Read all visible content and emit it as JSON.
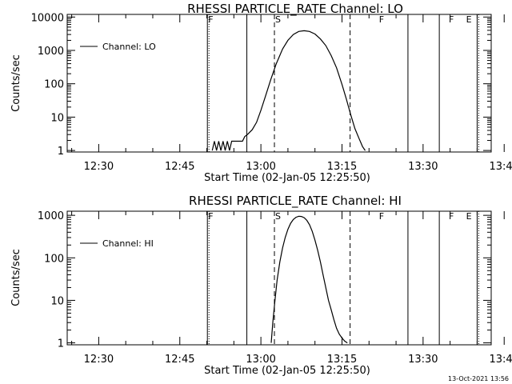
{
  "chart_data": [
    {
      "type": "line",
      "title": "RHESSI PARTICLE_RATE Channel: LO",
      "xlabel": "Start Time (02-Jan-05 12:25:50)",
      "ylabel": "Counts/sec",
      "y_scale": "log",
      "ylim": [
        0.9,
        12000
      ],
      "y_ticks": [
        1,
        10,
        100,
        1000,
        10000
      ],
      "y_tick_labels": [
        "1",
        "10",
        "100",
        "1000",
        "10000"
      ],
      "x_minutes_range": [
        -5.83,
        72.6
      ],
      "x_ticks": [
        0,
        15,
        30,
        45,
        60,
        75,
        90
      ],
      "x_tick_labels": [
        "12:30",
        "12:45",
        "13:00",
        "13:15",
        "13:30",
        "13:45",
        "14:00"
      ],
      "legend": {
        "entry": "Channel: LO",
        "placement": "top-left"
      },
      "series": [
        {
          "name": "Channel: LO",
          "x": [
            21.0,
            21.4,
            21.8,
            22.2,
            22.6,
            23.0,
            23.4,
            23.8,
            24.2,
            24.6,
            25.0,
            25.4,
            25.8,
            26.2,
            26.6,
            27.0,
            27.6,
            28.4,
            29.2,
            30.0,
            30.8,
            31.8,
            32.8,
            34.0,
            35.0,
            36.0,
            37.0,
            38.0,
            39.0,
            40.0,
            41.0,
            42.0,
            43.0,
            44.0,
            45.0,
            45.8,
            46.6,
            47.4,
            48.2,
            48.8,
            49.3
          ],
          "y": [
            1.0,
            1.9,
            1.0,
            1.9,
            1.0,
            1.9,
            1.0,
            1.9,
            1.0,
            1.9,
            1.9,
            1.9,
            1.9,
            1.9,
            1.9,
            2.6,
            3.1,
            4.2,
            7.0,
            16,
            40,
            130,
            380,
            1100,
            2000,
            3000,
            3700,
            3900,
            3700,
            3100,
            2200,
            1400,
            700,
            300,
            95,
            35,
            12,
            4.5,
            2.2,
            1.3,
            1.0
          ]
        }
      ],
      "markers": {
        "solid_vertical_lines_x": [
          20.1,
          27.4,
          57.2,
          63.0,
          70.0
        ],
        "dashed_vertical_lines_x": [
          32.5,
          46.5
        ],
        "dotted_vertical_lines_x": [
          20.1,
          70.0,
          88.2
        ],
        "letters": [
          {
            "text": "F",
            "x": 20.1
          },
          {
            "text": "S",
            "x": 32.5
          },
          {
            "text": "F",
            "x": 51.7
          },
          {
            "text": "F",
            "x": 64.6
          },
          {
            "text": "E",
            "x": 67.8
          }
        ]
      }
    },
    {
      "type": "line",
      "title": "RHESSI PARTICLE_RATE Channel: HI",
      "xlabel": "Start Time (02-Jan-05 12:25:50)",
      "ylabel": "Counts/sec",
      "y_scale": "log",
      "ylim": [
        0.9,
        1250
      ],
      "y_ticks": [
        1,
        10,
        100,
        1000
      ],
      "y_tick_labels": [
        "1",
        "10",
        "100",
        "1000"
      ],
      "x_minutes_range": [
        -5.83,
        72.6
      ],
      "x_ticks": [
        0,
        15,
        30,
        45,
        60,
        75,
        90
      ],
      "x_tick_labels": [
        "12:30",
        "12:45",
        "13:00",
        "13:15",
        "13:30",
        "13:45",
        "14:00"
      ],
      "legend": {
        "entry": "Channel: HI",
        "placement": "top-left"
      },
      "series": [
        {
          "name": "Channel: HI",
          "x": [
            31.9,
            32.2,
            32.6,
            33.0,
            33.5,
            34.0,
            34.5,
            35.0,
            35.5,
            36.0,
            36.5,
            37.0,
            37.5,
            38.0,
            38.5,
            39.0,
            39.5,
            40.0,
            40.5,
            41.0,
            41.5,
            42.0,
            42.5,
            43.0,
            43.5,
            44.0,
            44.5,
            45.0,
            45.5,
            46.0
          ],
          "y": [
            1.0,
            3.0,
            10,
            30,
            80,
            170,
            300,
            470,
            650,
            800,
            900,
            950,
            940,
            880,
            760,
            600,
            420,
            260,
            150,
            80,
            40,
            20,
            10,
            6,
            3.5,
            2.2,
            1.6,
            1.3,
            1.1,
            1.0
          ]
        }
      ],
      "markers": {
        "solid_vertical_lines_x": [
          20.1,
          27.4,
          57.2,
          63.0,
          70.0
        ],
        "dashed_vertical_lines_x": [
          32.5,
          46.5
        ],
        "dotted_vertical_lines_x": [
          20.1,
          70.0,
          88.2
        ],
        "letters": [
          {
            "text": "F",
            "x": 20.1
          },
          {
            "text": "S",
            "x": 32.5
          },
          {
            "text": "F",
            "x": 51.7
          },
          {
            "text": "F",
            "x": 64.6
          },
          {
            "text": "E",
            "x": 67.8
          }
        ]
      }
    }
  ],
  "footer": {
    "timestamp": "13-Oct-2021 13:56"
  }
}
